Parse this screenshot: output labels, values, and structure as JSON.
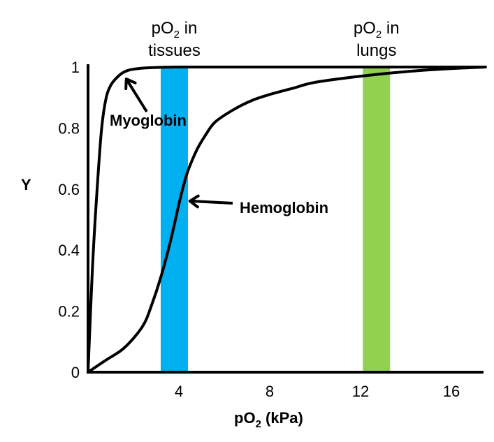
{
  "chart_data": {
    "type": "line",
    "xlabel": {
      "prefix": "pO",
      "sub": "2",
      "suffix": " (kPa)"
    },
    "ylabel": "Y",
    "xlim": [
      0,
      18
    ],
    "ylim": [
      0,
      1
    ],
    "x_ticks": [
      4,
      8,
      12,
      16
    ],
    "y_ticks": [
      0,
      0.2,
      0.4,
      0.6,
      0.8,
      1
    ],
    "y_tick_labels": [
      "0",
      "0.2",
      "0.4",
      "0.6",
      "0.8",
      "1"
    ],
    "grid": false,
    "bands": [
      {
        "id": "tissues",
        "x0": 3.2,
        "x1": 4.4,
        "color": "#00b0f0",
        "label_line1": "in",
        "label_line2": "tissues",
        "label_prefix": "pO",
        "label_sub": "2"
      },
      {
        "id": "lungs",
        "x0": 12.1,
        "x1": 13.3,
        "color": "#92d050",
        "label_line1": "in",
        "label_line2": "lungs",
        "label_prefix": "pO",
        "label_sub": "2"
      }
    ],
    "series": [
      {
        "name": "Myoglobin",
        "color": "#000000",
        "x": [
          0,
          0.2,
          0.4,
          0.6,
          0.8,
          1.0,
          1.2,
          1.5,
          1.8,
          2.2,
          2.8,
          4,
          6,
          8,
          12,
          16,
          17.5
        ],
        "y": [
          0,
          0.35,
          0.6,
          0.8,
          0.9,
          0.94,
          0.96,
          0.98,
          0.99,
          0.995,
          0.998,
          1.0,
          1.0,
          1.0,
          1.0,
          1.0,
          1.0
        ]
      },
      {
        "name": "Hemoglobin",
        "color": "#000000",
        "x": [
          0,
          0.8,
          1.6,
          2.4,
          2.8,
          3.2,
          3.6,
          4.0,
          4.2,
          4.4,
          4.8,
          5.2,
          5.6,
          6.4,
          7.2,
          8,
          9,
          10,
          12,
          14,
          16,
          17.5
        ],
        "y": [
          0,
          0.04,
          0.08,
          0.15,
          0.22,
          0.31,
          0.42,
          0.55,
          0.61,
          0.66,
          0.73,
          0.78,
          0.82,
          0.86,
          0.89,
          0.91,
          0.93,
          0.95,
          0.97,
          0.985,
          0.995,
          1.0
        ]
      }
    ],
    "annotations": [
      {
        "text": "Myoglobin",
        "series": "Myoglobin",
        "arrow_to": [
          1.5,
          0.97
        ]
      },
      {
        "text": "Hemoglobin",
        "series": "Hemoglobin",
        "arrow_to": [
          4.3,
          0.57
        ]
      }
    ]
  }
}
